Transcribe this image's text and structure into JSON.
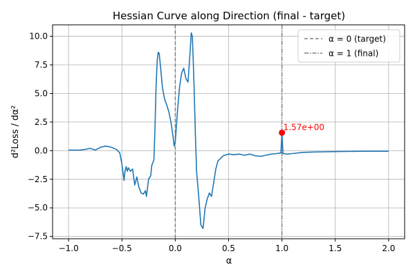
{
  "chart_data": {
    "type": "line",
    "title": "Hessian Curve along Direction (final - target)",
    "xlabel": "α",
    "ylabel": "d²Loss / dα²",
    "xlim": [
      -1.15,
      2.15
    ],
    "ylim": [
      -7.7,
      11.0
    ],
    "xticks": [
      -1.0,
      -0.5,
      0.0,
      0.5,
      1.0,
      1.5,
      2.0
    ],
    "xtick_labels": [
      "−1.0",
      "−0.5",
      "0.0",
      "0.5",
      "1.0",
      "1.5",
      "2.0"
    ],
    "yticks": [
      -7.5,
      -5.0,
      -2.5,
      0.0,
      2.5,
      5.0,
      7.5,
      10.0
    ],
    "ytick_labels": [
      "−7.5",
      "−5.0",
      "−2.5",
      "0.0",
      "2.5",
      "5.0",
      "7.5",
      "10.0"
    ],
    "grid": true,
    "legend_position": "top-right",
    "series": [
      {
        "color": "#1f77b4",
        "x": [
          -1.0,
          -0.9,
          -0.85,
          -0.8,
          -0.75,
          -0.7,
          -0.65,
          -0.6,
          -0.55,
          -0.52,
          -0.5,
          -0.48,
          -0.47,
          -0.46,
          -0.45,
          -0.44,
          -0.42,
          -0.4,
          -0.38,
          -0.36,
          -0.35,
          -0.34,
          -0.32,
          -0.3,
          -0.28,
          -0.27,
          -0.25,
          -0.23,
          -0.22,
          -0.2,
          -0.19,
          -0.18,
          -0.17,
          -0.16,
          -0.15,
          -0.14,
          -0.12,
          -0.1,
          -0.08,
          -0.06,
          -0.04,
          -0.02,
          -0.01,
          0.0,
          0.01,
          0.02,
          0.04,
          0.06,
          0.08,
          0.1,
          0.12,
          0.14,
          0.15,
          0.16,
          0.17,
          0.18,
          0.19,
          0.2,
          0.22,
          0.24,
          0.26,
          0.28,
          0.3,
          0.32,
          0.34,
          0.36,
          0.38,
          0.4,
          0.45,
          0.5,
          0.55,
          0.6,
          0.65,
          0.7,
          0.75,
          0.8,
          0.85,
          0.9,
          0.95,
          0.99,
          1.0,
          1.01,
          1.05,
          1.1,
          1.2,
          1.3,
          1.4,
          1.5,
          1.6,
          1.7,
          1.8,
          1.9,
          2.0
        ],
        "y": [
          0.05,
          0.05,
          0.1,
          0.2,
          0.05,
          0.3,
          0.4,
          0.3,
          0.1,
          -0.2,
          -1.2,
          -2.6,
          -1.7,
          -1.4,
          -1.8,
          -1.5,
          -1.8,
          -1.6,
          -3.0,
          -2.3,
          -2.8,
          -3.2,
          -3.7,
          -3.8,
          -3.5,
          -4.0,
          -2.5,
          -2.2,
          -1.3,
          -0.8,
          2.0,
          5.5,
          7.8,
          8.6,
          8.5,
          7.5,
          5.5,
          4.5,
          4.0,
          3.4,
          2.5,
          1.2,
          0.4,
          0.8,
          2.0,
          3.4,
          5.5,
          6.8,
          7.2,
          6.3,
          6.0,
          8.8,
          10.3,
          10.0,
          7.5,
          4.5,
          1.0,
          -1.8,
          -4.0,
          -6.5,
          -6.8,
          -5.0,
          -4.2,
          -3.7,
          -4.0,
          -2.8,
          -1.6,
          -0.9,
          -0.45,
          -0.3,
          -0.35,
          -0.3,
          -0.4,
          -0.3,
          -0.45,
          -0.5,
          -0.4,
          -0.3,
          -0.25,
          -0.2,
          1.57,
          -0.25,
          -0.3,
          -0.25,
          -0.15,
          -0.12,
          -0.1,
          -0.08,
          -0.07,
          -0.06,
          -0.05,
          -0.05,
          -0.05
        ]
      }
    ],
    "vlines": [
      {
        "x": 0.0,
        "style": "dashed",
        "color": "#808080",
        "label": "α = 0 (target)"
      },
      {
        "x": 1.0,
        "style": "dashdot",
        "color": "#808080",
        "label": "α = 1 (final)"
      }
    ],
    "highlight_point": {
      "x": 1.0,
      "y": 1.57,
      "color": "#ff0000",
      "label": "1.57e+00"
    }
  }
}
